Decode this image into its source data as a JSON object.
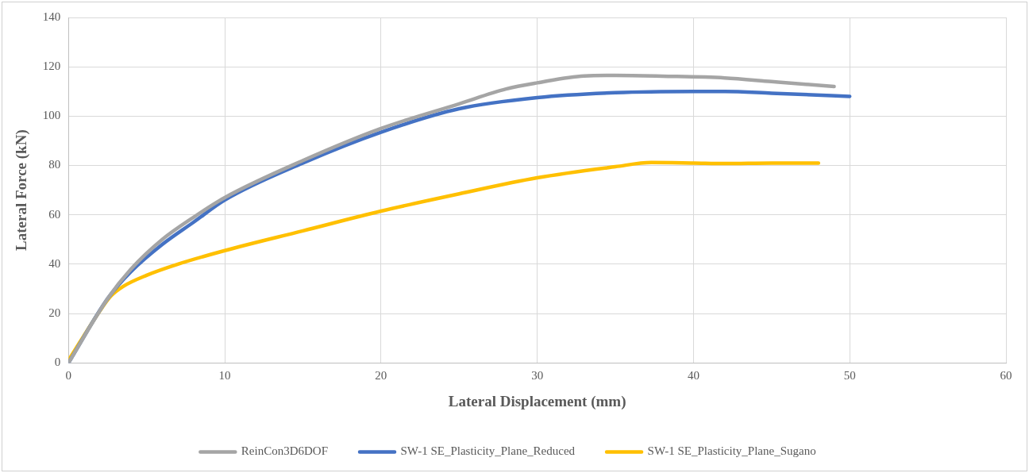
{
  "chart_data": {
    "type": "line",
    "xlabel": "Lateral Displacement (mm)",
    "ylabel": "Lateral Force (kN)",
    "xlim": [
      0,
      60
    ],
    "xticks": [
      0,
      10,
      20,
      30,
      40,
      50,
      60
    ],
    "ylim": [
      0,
      140
    ],
    "yticks": [
      0,
      20,
      40,
      60,
      80,
      100,
      120,
      140
    ],
    "grid": true,
    "legend": "bottom",
    "marker": "none",
    "line_style": "solid",
    "series": [
      {
        "name": "ReinCon3D6DOF",
        "color": "#a5a5a5",
        "x": [
          0,
          2.5,
          4,
          6,
          8,
          10,
          15,
          20,
          25,
          28,
          30,
          33,
          35,
          38,
          42,
          45,
          49
        ],
        "values": [
          0,
          26,
          38,
          50,
          59,
          67,
          82,
          95,
          105,
          111,
          113.5,
          116.3,
          116.5,
          116.2,
          115.5,
          114,
          112
        ]
      },
      {
        "name": "SW-1 SE_Plasticity_Plane_Reduced",
        "color": "#4472c4",
        "x": [
          0,
          2.5,
          4,
          6,
          8,
          10,
          15,
          20,
          25,
          30,
          35,
          40,
          42,
          45,
          50
        ],
        "values": [
          0,
          26,
          37,
          48,
          57,
          66,
          81,
          93.5,
          103,
          107.5,
          109.5,
          110,
          110,
          109.3,
          108
        ]
      },
      {
        "name": "SW-1 SE_Plasticity_Plane_Sugano",
        "color": "#ffc000",
        "x": [
          0,
          2,
          2.7,
          3.5,
          5,
          7,
          10,
          15,
          20,
          25,
          30,
          35,
          37.3,
          40,
          42,
          45,
          48
        ],
        "values": [
          1,
          21,
          27,
          31,
          35.5,
          40,
          45.5,
          53.5,
          61.5,
          68.5,
          75,
          79.5,
          81.2,
          81,
          80.8,
          81,
          81
        ]
      }
    ]
  }
}
